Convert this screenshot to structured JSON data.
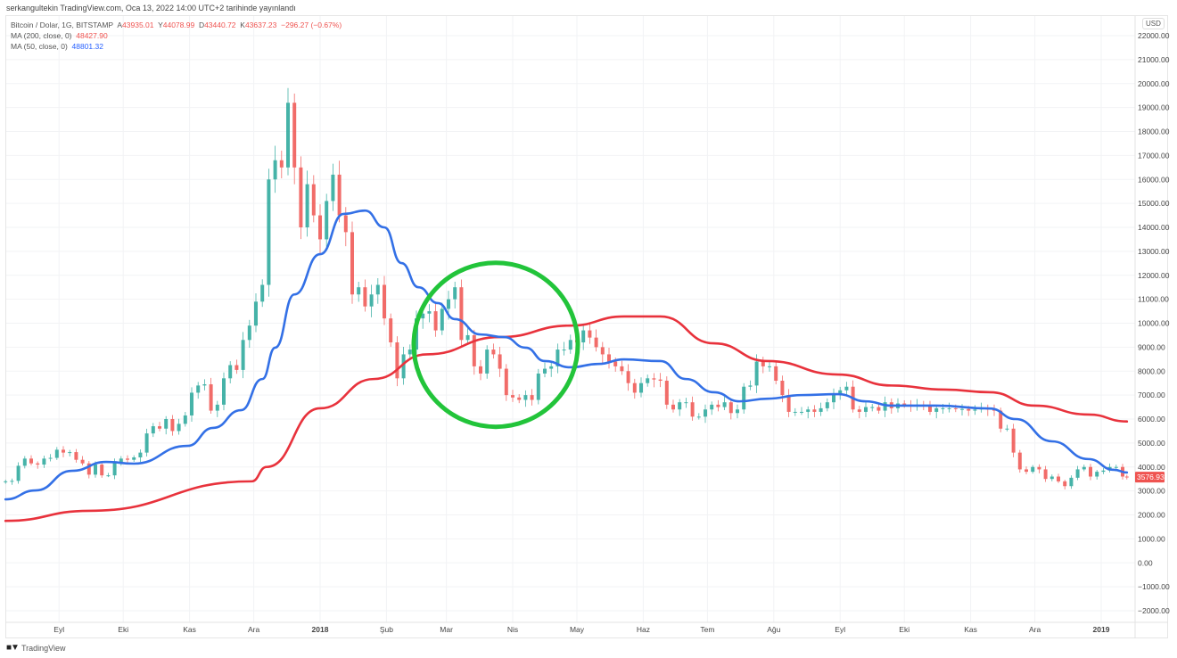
{
  "published": "serkangultekin TradingView.com, Oca 13, 2022 14:00 UTC+2 tarihinde yayınlandı",
  "legend": {
    "symbol": "Bitcoin / Dolar, 1G, BITSTAMP",
    "o_label": "A",
    "o": "43935.01",
    "h_label": "Y",
    "h": "44078.99",
    "l_label": "D",
    "l": "43440.72",
    "c_label": "K",
    "c": "43637.23",
    "change": "−296.27 (−0.67%)",
    "ma200_label": "MA (200, close, 0)",
    "ma200_value": "48427.90",
    "ma50_label": "MA (50, close, 0)",
    "ma50_value": "48801.32"
  },
  "currency": "USD",
  "last_price": "3576.93",
  "footer": {
    "logo": "TV",
    "brand": "TradingView"
  },
  "colors": {
    "up": "#26a69a",
    "down": "#ef5350",
    "ma200": "#e8323c",
    "ma50": "#3370e6",
    "annotation": "#22c43a",
    "last_price_bg": "#ef5350"
  },
  "annotation": {
    "type": "circle",
    "center_date": "2018-03-27",
    "center_price": 9100,
    "color": "#22c43a"
  },
  "chart_data": {
    "type": "candlestick",
    "title": "",
    "xlabel": "",
    "ylabel": "",
    "ylim": [
      -2000,
      22000
    ],
    "xlim": [
      "2017-08-05",
      "2019-01-17"
    ],
    "grid": true,
    "y_ticks": [
      "22000.00",
      "21000.00",
      "20000.00",
      "19000.00",
      "18000.00",
      "17000.00",
      "16000.00",
      "15000.00",
      "14000.00",
      "13000.00",
      "12000.00",
      "11000.00",
      "10000.00",
      "9000.00",
      "8000.00",
      "7000.00",
      "6000.00",
      "5000.00",
      "4000.00",
      "3000.00",
      "2000.00",
      "1000.00",
      "0.00",
      "−1000.00",
      "−2000.00"
    ],
    "x_ticks": [
      {
        "label": "Eyl",
        "date": "2017-09-01"
      },
      {
        "label": "Eki",
        "date": "2017-10-01"
      },
      {
        "label": "Kas",
        "date": "2017-11-01"
      },
      {
        "label": "Ara",
        "date": "2017-12-01"
      },
      {
        "label": "2018",
        "date": "2018-01-01",
        "bold": true
      },
      {
        "label": "Şub",
        "date": "2018-02-01"
      },
      {
        "label": "Mar",
        "date": "2018-03-01"
      },
      {
        "label": "Nis",
        "date": "2018-04-01"
      },
      {
        "label": "May",
        "date": "2018-05-01"
      },
      {
        "label": "Haz",
        "date": "2018-06-01"
      },
      {
        "label": "Tem",
        "date": "2018-07-01"
      },
      {
        "label": "Ağu",
        "date": "2018-08-01"
      },
      {
        "label": "Eyl",
        "date": "2018-09-01"
      },
      {
        "label": "Eki",
        "date": "2018-10-01"
      },
      {
        "label": "Kas",
        "date": "2018-11-01"
      },
      {
        "label": "Ara",
        "date": "2018-12-01"
      },
      {
        "label": "2019",
        "date": "2019-01-01",
        "bold": true
      }
    ],
    "closes": [
      [
        "2017-08-07",
        3400
      ],
      [
        "2017-08-10",
        3420
      ],
      [
        "2017-08-13",
        4050
      ],
      [
        "2017-08-16",
        4350
      ],
      [
        "2017-08-19",
        4150
      ],
      [
        "2017-08-22",
        4100
      ],
      [
        "2017-08-25",
        4350
      ],
      [
        "2017-08-28",
        4380
      ],
      [
        "2017-08-31",
        4720
      ],
      [
        "2017-09-03",
        4600
      ],
      [
        "2017-09-06",
        4620
      ],
      [
        "2017-09-09",
        4300
      ],
      [
        "2017-09-12",
        4150
      ],
      [
        "2017-09-15",
        3680
      ],
      [
        "2017-09-18",
        4100
      ],
      [
        "2017-09-21",
        3650
      ],
      [
        "2017-09-24",
        3650
      ],
      [
        "2017-09-27",
        4200
      ],
      [
        "2017-09-30",
        4350
      ],
      [
        "2017-10-03",
        4300
      ],
      [
        "2017-10-06",
        4400
      ],
      [
        "2017-10-09",
        4600
      ],
      [
        "2017-10-12",
        5400
      ],
      [
        "2017-10-15",
        5700
      ],
      [
        "2017-10-18",
        5600
      ],
      [
        "2017-10-21",
        6000
      ],
      [
        "2017-10-24",
        5500
      ],
      [
        "2017-10-27",
        5800
      ],
      [
        "2017-10-30",
        6150
      ],
      [
        "2017-11-02",
        7100
      ],
      [
        "2017-11-05",
        7400
      ],
      [
        "2017-11-08",
        7450
      ],
      [
        "2017-11-11",
        6350
      ],
      [
        "2017-11-14",
        6600
      ],
      [
        "2017-11-17",
        7700
      ],
      [
        "2017-11-20",
        8250
      ],
      [
        "2017-11-23",
        8050
      ],
      [
        "2017-11-26",
        9300
      ],
      [
        "2017-11-29",
        9900
      ],
      [
        "2017-12-02",
        10900
      ],
      [
        "2017-12-05",
        11600
      ],
      [
        "2017-12-08",
        16000
      ],
      [
        "2017-12-11",
        16800
      ],
      [
        "2017-12-14",
        16500
      ],
      [
        "2017-12-17",
        19200
      ],
      [
        "2017-12-20",
        16500
      ],
      [
        "2017-12-23",
        14000
      ],
      [
        "2017-12-26",
        15800
      ],
      [
        "2017-12-29",
        14500
      ],
      [
        "2018-01-01",
        13500
      ],
      [
        "2018-01-04",
        15100
      ],
      [
        "2018-01-07",
        16200
      ],
      [
        "2018-01-10",
        14500
      ],
      [
        "2018-01-13",
        13800
      ],
      [
        "2018-01-16",
        11200
      ],
      [
        "2018-01-19",
        11500
      ],
      [
        "2018-01-22",
        10700
      ],
      [
        "2018-01-25",
        11200
      ],
      [
        "2018-01-28",
        11600
      ],
      [
        "2018-01-31",
        10200
      ],
      [
        "2018-02-03",
        9200
      ],
      [
        "2018-02-06",
        7700
      ],
      [
        "2018-02-09",
        8700
      ],
      [
        "2018-02-12",
        8900
      ],
      [
        "2018-02-15",
        10200
      ],
      [
        "2018-02-18",
        10400
      ],
      [
        "2018-02-21",
        10500
      ],
      [
        "2018-02-24",
        9700
      ],
      [
        "2018-02-27",
        10600
      ],
      [
        "2018-03-02",
        11000
      ],
      [
        "2018-03-05",
        11500
      ],
      [
        "2018-03-08",
        9300
      ],
      [
        "2018-03-11",
        9500
      ],
      [
        "2018-03-14",
        8200
      ],
      [
        "2018-03-17",
        7900
      ],
      [
        "2018-03-20",
        8900
      ],
      [
        "2018-03-23",
        8700
      ],
      [
        "2018-03-26",
        8100
      ],
      [
        "2018-03-29",
        7000
      ],
      [
        "2018-04-01",
        6900
      ],
      [
        "2018-04-04",
        6800
      ],
      [
        "2018-04-07",
        7000
      ],
      [
        "2018-04-10",
        6800
      ],
      [
        "2018-04-13",
        7900
      ],
      [
        "2018-04-16",
        8100
      ],
      [
        "2018-04-19",
        8200
      ],
      [
        "2018-04-22",
        8900
      ],
      [
        "2018-04-25",
        8900
      ],
      [
        "2018-04-28",
        9300
      ],
      [
        "2018-05-01",
        9200
      ],
      [
        "2018-05-04",
        9700
      ],
      [
        "2018-05-07",
        9400
      ],
      [
        "2018-05-10",
        9000
      ],
      [
        "2018-05-13",
        8700
      ],
      [
        "2018-05-16",
        8400
      ],
      [
        "2018-05-19",
        8200
      ],
      [
        "2018-05-22",
        8000
      ],
      [
        "2018-05-25",
        7500
      ],
      [
        "2018-05-28",
        7100
      ],
      [
        "2018-05-31",
        7500
      ],
      [
        "2018-06-03",
        7700
      ],
      [
        "2018-06-06",
        7650
      ],
      [
        "2018-06-09",
        7600
      ],
      [
        "2018-06-12",
        6600
      ],
      [
        "2018-06-15",
        6400
      ],
      [
        "2018-06-18",
        6700
      ],
      [
        "2018-06-21",
        6700
      ],
      [
        "2018-06-24",
        6100
      ],
      [
        "2018-06-27",
        6100
      ],
      [
        "2018-06-30",
        6400
      ],
      [
        "2018-07-03",
        6600
      ],
      [
        "2018-07-06",
        6500
      ],
      [
        "2018-07-09",
        6700
      ],
      [
        "2018-07-12",
        6250
      ],
      [
        "2018-07-15",
        6400
      ],
      [
        "2018-07-18",
        7350
      ],
      [
        "2018-07-21",
        7400
      ],
      [
        "2018-07-24",
        8400
      ],
      [
        "2018-07-27",
        8200
      ],
      [
        "2018-07-30",
        8200
      ],
      [
        "2018-08-02",
        7600
      ],
      [
        "2018-08-05",
        7000
      ],
      [
        "2018-08-08",
        6300
      ],
      [
        "2018-08-11",
        6300
      ],
      [
        "2018-08-14",
        6300
      ],
      [
        "2018-08-17",
        6400
      ],
      [
        "2018-08-20",
        6300
      ],
      [
        "2018-08-23",
        6450
      ],
      [
        "2018-08-26",
        6700
      ],
      [
        "2018-08-29",
        7050
      ],
      [
        "2018-09-01",
        7200
      ],
      [
        "2018-09-04",
        7350
      ],
      [
        "2018-09-07",
        6400
      ],
      [
        "2018-09-10",
        6300
      ],
      [
        "2018-09-13",
        6500
      ],
      [
        "2018-09-16",
        6500
      ],
      [
        "2018-09-19",
        6350
      ],
      [
        "2018-09-22",
        6700
      ],
      [
        "2018-09-25",
        6450
      ],
      [
        "2018-09-28",
        6650
      ],
      [
        "2018-10-01",
        6600
      ],
      [
        "2018-10-04",
        6580
      ],
      [
        "2018-10-07",
        6600
      ],
      [
        "2018-10-10",
        6550
      ],
      [
        "2018-10-13",
        6300
      ],
      [
        "2018-10-16",
        6450
      ],
      [
        "2018-10-19",
        6450
      ],
      [
        "2018-10-22",
        6450
      ],
      [
        "2018-10-25",
        6420
      ],
      [
        "2018-10-28",
        6420
      ],
      [
        "2018-10-31",
        6350
      ],
      [
        "2018-11-03",
        6400
      ],
      [
        "2018-11-06",
        6450
      ],
      [
        "2018-11-09",
        6400
      ],
      [
        "2018-11-12",
        6350
      ],
      [
        "2018-11-15",
        5600
      ],
      [
        "2018-11-18",
        5600
      ],
      [
        "2018-11-21",
        4600
      ],
      [
        "2018-11-24",
        3900
      ],
      [
        "2018-11-27",
        3800
      ],
      [
        "2018-11-30",
        4000
      ],
      [
        "2018-12-03",
        3900
      ],
      [
        "2018-12-06",
        3500
      ],
      [
        "2018-12-09",
        3600
      ],
      [
        "2018-12-12",
        3400
      ],
      [
        "2018-12-15",
        3200
      ],
      [
        "2018-12-18",
        3550
      ],
      [
        "2018-12-21",
        3900
      ],
      [
        "2018-12-24",
        4000
      ],
      [
        "2018-12-27",
        3600
      ],
      [
        "2018-12-30",
        3800
      ],
      [
        "2019-01-02",
        3850
      ],
      [
        "2019-01-05",
        4000
      ],
      [
        "2019-01-08",
        4000
      ],
      [
        "2019-01-11",
        3600
      ],
      [
        "2019-01-13",
        3577
      ]
    ],
    "series": [
      {
        "name": "MA (200, close, 0)",
        "type": "line",
        "points": [
          [
            "2017-08-07",
            1750
          ],
          [
            "2017-09-15",
            2170
          ],
          [
            "2017-11-30",
            3400
          ],
          [
            "2017-12-07",
            4000
          ],
          [
            "2018-01-01",
            6450
          ],
          [
            "2018-01-26",
            7670
          ],
          [
            "2018-02-20",
            8700
          ],
          [
            "2018-03-26",
            9420
          ],
          [
            "2018-04-28",
            9900
          ],
          [
            "2018-05-23",
            10280
          ],
          [
            "2018-06-09",
            10280
          ],
          [
            "2018-07-04",
            9160
          ],
          [
            "2018-07-29",
            8420
          ],
          [
            "2018-08-31",
            7860
          ],
          [
            "2018-09-25",
            7400
          ],
          [
            "2018-10-20",
            7230
          ],
          [
            "2018-11-10",
            7120
          ],
          [
            "2018-12-01",
            6560
          ],
          [
            "2018-12-26",
            6190
          ],
          [
            "2019-01-13",
            5900
          ]
        ]
      },
      {
        "name": "MA (50, close, 0)",
        "type": "line",
        "points": [
          [
            "2017-08-07",
            2650
          ],
          [
            "2017-08-21",
            3020
          ],
          [
            "2017-09-07",
            3840
          ],
          [
            "2017-09-23",
            4210
          ],
          [
            "2017-10-06",
            4140
          ],
          [
            "2017-10-31",
            4880
          ],
          [
            "2017-11-12",
            5630
          ],
          [
            "2017-11-25",
            6370
          ],
          [
            "2017-12-05",
            7670
          ],
          [
            "2017-12-11",
            8980
          ],
          [
            "2017-12-20",
            11200
          ],
          [
            "2018-01-01",
            12880
          ],
          [
            "2018-01-12",
            14560
          ],
          [
            "2018-01-22",
            14700
          ],
          [
            "2018-01-31",
            14000
          ],
          [
            "2018-02-08",
            12510
          ],
          [
            "2018-02-16",
            11500
          ],
          [
            "2018-02-25",
            10840
          ],
          [
            "2018-03-05",
            10170
          ],
          [
            "2018-03-17",
            9530
          ],
          [
            "2018-03-28",
            9420
          ],
          [
            "2018-04-07",
            8980
          ],
          [
            "2018-04-16",
            8420
          ],
          [
            "2018-04-28",
            8160
          ],
          [
            "2018-05-11",
            8300
          ],
          [
            "2018-05-23",
            8490
          ],
          [
            "2018-06-09",
            8420
          ],
          [
            "2018-06-21",
            7670
          ],
          [
            "2018-07-04",
            7120
          ],
          [
            "2018-07-16",
            6740
          ],
          [
            "2018-07-29",
            6850
          ],
          [
            "2018-08-14",
            7000
          ],
          [
            "2018-08-31",
            7040
          ],
          [
            "2018-09-13",
            6740
          ],
          [
            "2018-09-25",
            6560
          ],
          [
            "2018-10-16",
            6560
          ],
          [
            "2018-11-10",
            6440
          ],
          [
            "2018-11-22",
            6000
          ],
          [
            "2018-12-09",
            5070
          ],
          [
            "2018-12-26",
            4330
          ],
          [
            "2019-01-07",
            3880
          ],
          [
            "2019-01-13",
            3770
          ]
        ]
      }
    ]
  }
}
